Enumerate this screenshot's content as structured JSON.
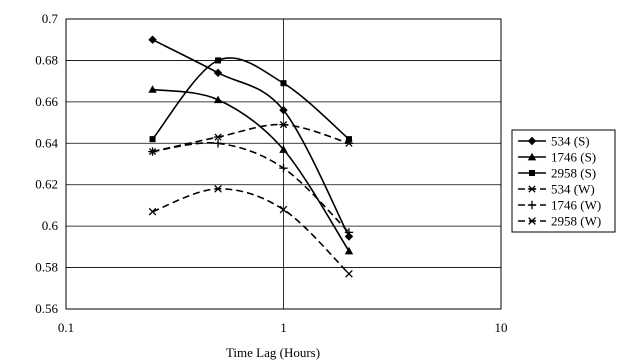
{
  "chart_data": {
    "type": "line",
    "title": "",
    "xlabel": "Time Lag (Hours)",
    "ylabel": "",
    "x_scale": "log",
    "xlim": [
      0.1,
      10
    ],
    "ylim": [
      0.56,
      0.7
    ],
    "x_ticks": [
      "0.1",
      "1",
      "10"
    ],
    "y_ticks": [
      "0.56",
      "0.58",
      "0.6",
      "0.62",
      "0.64",
      "0.66",
      "0.68",
      "0.7"
    ],
    "grid": "on",
    "legend_position": "right",
    "x": [
      0.25,
      0.5,
      1,
      2
    ],
    "series": [
      {
        "name": "534 (S)",
        "values": [
          0.69,
          0.674,
          0.656,
          0.595
        ],
        "marker": "diamond",
        "line": "solid",
        "smooth": true
      },
      {
        "name": "1746 (S)",
        "values": [
          0.666,
          0.661,
          0.637,
          0.588
        ],
        "marker": "triangle",
        "line": "solid",
        "smooth": true
      },
      {
        "name": "2958 (S)",
        "values": [
          0.642,
          0.68,
          0.669,
          0.642
        ],
        "marker": "square",
        "line": "solid",
        "smooth": true
      },
      {
        "name": "534 (W)",
        "values": [
          0.636,
          0.643,
          0.649,
          0.64
        ],
        "marker": "asterisk",
        "line": "dashed",
        "smooth": true
      },
      {
        "name": "1746 (W)",
        "values": [
          0.636,
          0.64,
          0.628,
          0.597
        ],
        "marker": "plus",
        "line": "dashed",
        "smooth": true
      },
      {
        "name": "2958 (W)",
        "values": [
          0.607,
          0.618,
          0.608,
          0.577
        ],
        "marker": "x",
        "line": "dashed",
        "smooth": true
      }
    ]
  }
}
